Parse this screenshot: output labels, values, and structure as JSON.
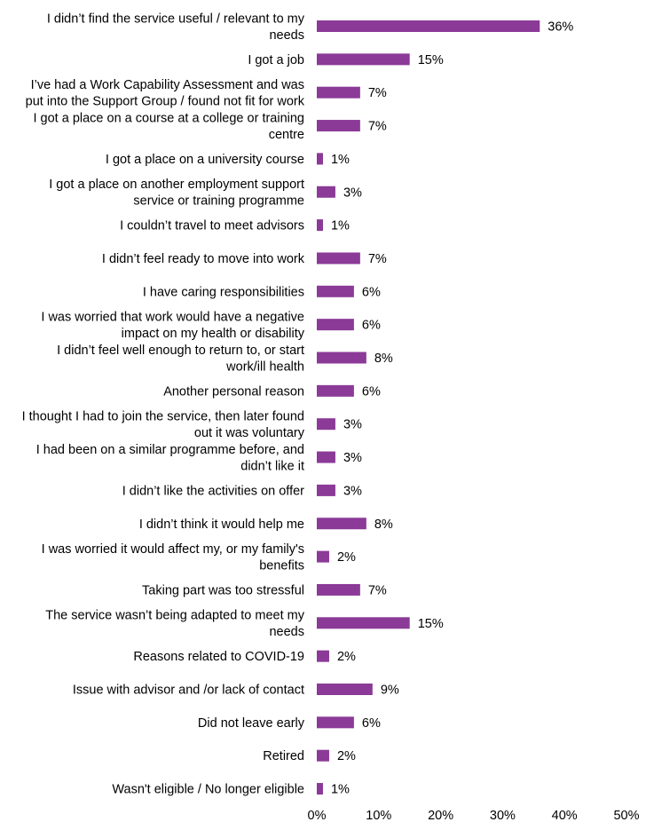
{
  "chart_data": {
    "type": "bar",
    "orientation": "horizontal",
    "title": "",
    "xlabel": "",
    "ylabel": "",
    "xlim": [
      0,
      50
    ],
    "x_ticks": [
      "0%",
      "10%",
      "20%",
      "30%",
      "40%",
      "50%"
    ],
    "grid": false,
    "bar_color": "#8B3A97",
    "categories": [
      [
        "I didn’t find the service useful / relevant to my",
        "needs"
      ],
      [
        "I got a job"
      ],
      [
        "I’ve had a Work Capability Assessment and was",
        "put into the Support Group / found not fit for work"
      ],
      [
        "I got a place on a course at a college or training",
        "centre"
      ],
      [
        "I got a place on a university course"
      ],
      [
        "I got a place on another employment support",
        "service or training programme"
      ],
      [
        "I couldn’t travel to meet advisors"
      ],
      [
        "I didn’t feel ready to move into work"
      ],
      [
        "I have caring responsibilities"
      ],
      [
        "I was worried that work would have a negative",
        "impact on my health or disability"
      ],
      [
        "I didn’t feel well enough to return to, or start",
        "work/ill health"
      ],
      [
        "Another personal reason"
      ],
      [
        "I thought I had to join the service, then later found",
        "out it was voluntary"
      ],
      [
        "I had been on a similar programme before, and",
        "didn’t like it"
      ],
      [
        "I didn’t like the activities on offer"
      ],
      [
        "I didn’t think it would help me"
      ],
      [
        "I was worried it would affect my, or my family's",
        "benefits"
      ],
      [
        "Taking part was too stressful"
      ],
      [
        "The service wasn’t being adapted to meet my",
        "needs"
      ],
      [
        "Reasons related to COVID-19"
      ],
      [
        "Issue with advisor and /or lack of contact"
      ],
      [
        "Did not leave early"
      ],
      [
        "Retired"
      ],
      [
        "Wasn't eligible / No longer eligible"
      ]
    ],
    "values": [
      36,
      15,
      7,
      7,
      1,
      3,
      1,
      7,
      6,
      6,
      8,
      6,
      3,
      3,
      3,
      8,
      2,
      7,
      15,
      2,
      9,
      6,
      2,
      1
    ],
    "value_labels": [
      "36%",
      "15%",
      "7%",
      "7%",
      "1%",
      "3%",
      "1%",
      "7%",
      "6%",
      "6%",
      "8%",
      "6%",
      "3%",
      "3%",
      "3%",
      "8%",
      "2%",
      "7%",
      "15%",
      "2%",
      "9%",
      "6%",
      "2%",
      "1%"
    ]
  }
}
